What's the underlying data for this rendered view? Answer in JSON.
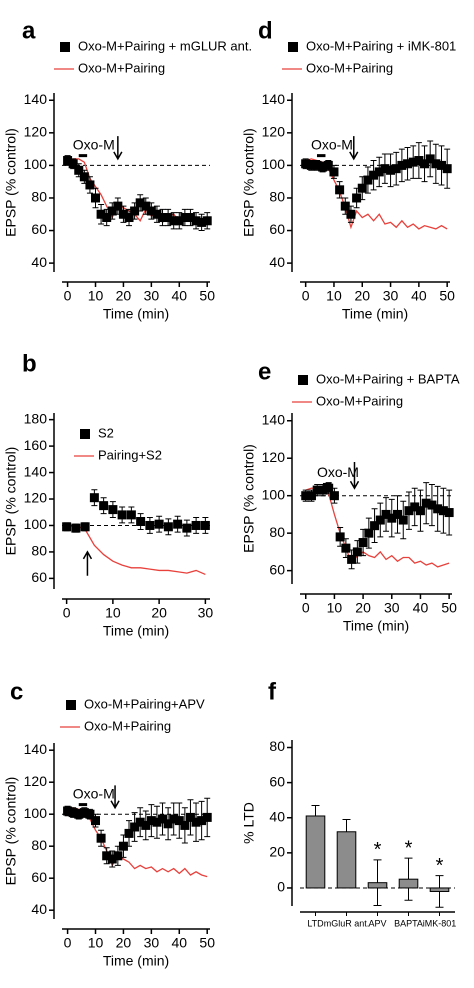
{
  "chart_data": [
    {
      "type": "line",
      "panel": "a",
      "xlabel": "Time (min)",
      "ylabel": "EPSP (% control)",
      "xlim": [
        -2,
        51
      ],
      "ylim": [
        37,
        142
      ],
      "xticks": [
        0,
        10,
        20,
        30,
        40,
        50
      ],
      "yticks": [
        40,
        60,
        80,
        100,
        120,
        140
      ],
      "refline": 100,
      "annotation": "Oxo-M",
      "application": [
        4,
        7
      ],
      "arrow_x": 18,
      "x": [
        0,
        2,
        4,
        6,
        8,
        10,
        12,
        14,
        16,
        18,
        20,
        22,
        24,
        26,
        28,
        30,
        32,
        34,
        36,
        38,
        40,
        42,
        44,
        46,
        48,
        50
      ],
      "series": [
        {
          "name": "Oxo-M+Pairing + mGLUR ant.",
          "color": "#000000",
          "marker": "square",
          "values": [
            103,
            101,
            97,
            93,
            88,
            80,
            70,
            68,
            72,
            75,
            70,
            68,
            72,
            77,
            75,
            72,
            70,
            68,
            68,
            66,
            66,
            68,
            68,
            66,
            65,
            66
          ],
          "errors": [
            3,
            3,
            4,
            4,
            5,
            6,
            6,
            5,
            5,
            5,
            5,
            5,
            5,
            5,
            5,
            5,
            5,
            5,
            5,
            5,
            5,
            5,
            5,
            5,
            5,
            5
          ]
        },
        {
          "name": "Oxo-M+Pairing",
          "color": "#e8413c",
          "values": [
            103,
            104,
            104,
            102,
            92,
            87,
            82,
            75,
            68,
            77,
            74,
            72,
            70,
            66,
            73,
            69,
            71,
            65,
            69,
            70,
            66,
            68,
            67,
            64,
            66,
            64
          ]
        }
      ]
    },
    {
      "type": "line",
      "panel": "b",
      "xlabel": "Time (min)",
      "ylabel": "EPSP (% control)",
      "xlim": [
        -1,
        31
      ],
      "ylim": [
        55,
        182
      ],
      "xticks": [
        0,
        10,
        20,
        30
      ],
      "yticks": [
        60,
        80,
        100,
        120,
        140,
        160,
        180
      ],
      "refline": 100,
      "arrow_up_x": 4.5,
      "x": [
        0,
        2,
        4,
        6,
        8,
        10,
        12,
        14,
        16,
        18,
        20,
        22,
        24,
        26,
        28,
        30
      ],
      "series": [
        {
          "name": "S2",
          "color": "#000000",
          "marker": "square",
          "values": [
            99,
            98,
            99,
            121,
            115,
            112,
            108,
            108,
            103,
            100,
            101,
            99,
            101,
            98,
            100,
            100
          ],
          "errors": [
            3,
            3,
            3,
            6,
            6,
            6,
            6,
            6,
            6,
            6,
            6,
            6,
            6,
            6,
            6,
            6
          ]
        },
        {
          "name": "Pairing+S2",
          "color": "#e8413c",
          "values": [
            99,
            100,
            97,
            85,
            78,
            73,
            70,
            68,
            68,
            67,
            66,
            66,
            65,
            64,
            66,
            63
          ]
        }
      ]
    },
    {
      "type": "line",
      "panel": "c",
      "xlabel": "Time (min)",
      "ylabel": "EPSP (% control)",
      "xlim": [
        -2,
        51
      ],
      "ylim": [
        37,
        142
      ],
      "xticks": [
        0,
        10,
        20,
        30,
        40,
        50
      ],
      "yticks": [
        40,
        60,
        80,
        100,
        120,
        140
      ],
      "refline": 100,
      "annotation": "Oxo-M",
      "application": [
        4,
        7
      ],
      "arrow_x": 17,
      "x": [
        0,
        2,
        4,
        6,
        8,
        10,
        12,
        14,
        16,
        18,
        20,
        22,
        24,
        26,
        28,
        30,
        32,
        34,
        36,
        38,
        40,
        42,
        44,
        46,
        48,
        50
      ],
      "series": [
        {
          "name": "Oxo-M+Pairing+APV",
          "color": "#000000",
          "marker": "square",
          "values": [
            102,
            101,
            100,
            101,
            100,
            96,
            85,
            74,
            72,
            74,
            80,
            88,
            92,
            95,
            93,
            96,
            95,
            97,
            94,
            97,
            96,
            93,
            98,
            95,
            96,
            98
          ],
          "errors": [
            3,
            3,
            3,
            3,
            3,
            4,
            5,
            5,
            5,
            6,
            7,
            8,
            9,
            9,
            9,
            10,
            10,
            10,
            10,
            10,
            11,
            11,
            11,
            12,
            12,
            12
          ]
        },
        {
          "name": "Oxo-M+Pairing",
          "color": "#e8413c",
          "values": [
            103,
            104,
            103,
            102,
            97,
            90,
            85,
            77,
            68,
            74,
            72,
            70,
            66,
            68,
            66,
            67,
            64,
            66,
            64,
            66,
            63,
            66,
            62,
            64,
            62,
            61
          ]
        }
      ]
    },
    {
      "type": "line",
      "panel": "d",
      "xlabel": "Time (min)",
      "ylabel": "EPSP (% control)",
      "xlim": [
        -2,
        51
      ],
      "ylim": [
        37,
        142
      ],
      "xticks": [
        0,
        10,
        20,
        30,
        40,
        50
      ],
      "yticks": [
        40,
        60,
        80,
        100,
        120,
        140
      ],
      "refline": 100,
      "annotation": "Oxo-M",
      "application": [
        4,
        7
      ],
      "arrow_x": 17,
      "x": [
        0,
        2,
        4,
        6,
        8,
        10,
        12,
        14,
        16,
        18,
        20,
        22,
        24,
        26,
        28,
        30,
        32,
        34,
        36,
        38,
        40,
        42,
        44,
        46,
        48,
        50
      ],
      "series": [
        {
          "name": "Oxo-M+Pairing + iMK-801",
          "color": "#000000",
          "marker": "square",
          "values": [
            101,
            100,
            100,
            99,
            100,
            96,
            85,
            75,
            70,
            80,
            86,
            91,
            94,
            96,
            98,
            97,
            98,
            100,
            101,
            102,
            103,
            101,
            104,
            101,
            100,
            98
          ],
          "errors": [
            3,
            3,
            3,
            3,
            3,
            4,
            5,
            5,
            5,
            6,
            7,
            8,
            9,
            9,
            9,
            10,
            10,
            10,
            10,
            10,
            11,
            11,
            11,
            12,
            12,
            12
          ]
        },
        {
          "name": "Oxo-M+Pairing",
          "color": "#e8413c",
          "values": [
            103,
            104,
            103,
            102,
            98,
            91,
            84,
            74,
            62,
            72,
            68,
            70,
            66,
            70,
            64,
            65,
            62,
            66,
            62,
            64,
            61,
            63,
            62,
            61,
            63,
            61
          ]
        }
      ]
    },
    {
      "type": "line",
      "panel": "e",
      "xlabel": "Time (min)",
      "ylabel": "EPSP (% control)",
      "xlim": [
        -2,
        51
      ],
      "ylim": [
        55,
        142
      ],
      "xticks": [
        0,
        10,
        20,
        30,
        40,
        50
      ],
      "yticks": [
        60,
        80,
        100,
        120,
        140
      ],
      "refline": 100,
      "annotation": "Oxo-M",
      "application": [
        6,
        9
      ],
      "arrow_x": 17,
      "x": [
        0,
        2,
        4,
        6,
        8,
        10,
        12,
        14,
        16,
        18,
        20,
        22,
        24,
        26,
        28,
        30,
        32,
        34,
        36,
        38,
        40,
        42,
        44,
        46,
        48,
        50
      ],
      "series": [
        {
          "name": "Oxo-M+Pairing + BAPTA",
          "color": "#000000",
          "marker": "square",
          "values": [
            100,
            100,
            103,
            103,
            104,
            100,
            78,
            72,
            66,
            70,
            75,
            80,
            84,
            87,
            90,
            88,
            90,
            87,
            92,
            94,
            92,
            96,
            95,
            93,
            92,
            91
          ],
          "errors": [
            3,
            3,
            3,
            3,
            3,
            4,
            5,
            5,
            5,
            6,
            7,
            8,
            9,
            9,
            9,
            10,
            10,
            10,
            10,
            10,
            11,
            11,
            11,
            12,
            12,
            12
          ]
        },
        {
          "name": "Oxo-M+Pairing",
          "color": "#e8413c",
          "values": [
            103,
            104,
            104,
            103,
            101,
            90,
            80,
            72,
            64,
            68,
            70,
            68,
            67,
            70,
            66,
            68,
            65,
            67,
            67,
            64,
            65,
            63,
            64,
            62,
            63,
            64
          ]
        }
      ]
    },
    {
      "type": "bar",
      "panel": "f",
      "ylabel": "% LTD",
      "ylim": [
        -8,
        82
      ],
      "yticks": [
        0,
        20,
        40,
        60,
        80
      ],
      "refline": 0,
      "color": "#8c8c8c",
      "categories": [
        "LTD",
        "mGluR ant.",
        "APV",
        "BAPTA",
        "iMK-801"
      ],
      "values": [
        41,
        32,
        3,
        5,
        -2
      ],
      "errors": [
        6,
        7,
        13,
        12,
        9
      ],
      "markers": [
        null,
        null,
        "*",
        "*",
        "*"
      ]
    }
  ]
}
